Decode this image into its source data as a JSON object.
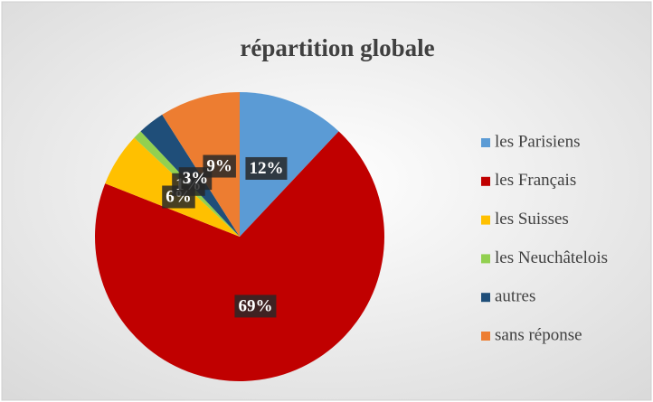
{
  "chart_data": {
    "type": "pie",
    "title": "répartition globale",
    "categories": [
      "les Parisiens",
      "les Français",
      "les Suisses",
      "les Neuchâtelois",
      "autres",
      "sans réponse"
    ],
    "values": [
      12,
      69,
      6,
      1,
      3,
      9
    ],
    "value_labels": [
      "12%",
      "69%",
      "6%",
      "1%",
      "3%",
      "9%"
    ],
    "colors": [
      "#5b9bd5",
      "#c00000",
      "#ffc000",
      "#92d050",
      "#1f4e79",
      "#ed7d31"
    ],
    "legend": "right"
  }
}
